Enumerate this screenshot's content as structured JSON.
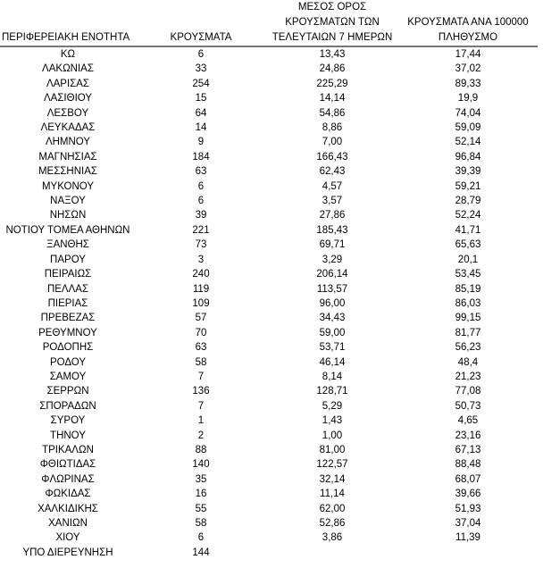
{
  "headers": {
    "region": "ΠΕΡΙΦΕΡΕΙΑΚΗ ΕΝΟΤΗΤΑ",
    "cases": "ΚΡΟΥΣΜΑΤΑ",
    "avg7_line1": "ΜΕΣΟΣ ΟΡΟΣ",
    "avg7_line2": "ΚΡΟΥΣΜΑΤΩΝ ΤΩΝ",
    "avg7_line3": "ΤΕΛΕΥΤΑΙΩΝ 7 ΗΜΕΡΩΝ",
    "per100k_line1": "ΚΡΟΥΣΜΑΤΑ ΑΝΑ 100000",
    "per100k_line2": "ΠΛΗΘΥΣΜΟ"
  },
  "rows": [
    [
      "ΚΩ",
      "6",
      "13,43",
      "17,44"
    ],
    [
      "ΛΑΚΩΝΙΑΣ",
      "33",
      "24,86",
      "37,02"
    ],
    [
      "ΛΑΡΙΣΑΣ",
      "254",
      "225,29",
      "89,33"
    ],
    [
      "ΛΑΣΙΘΙΟΥ",
      "15",
      "14,14",
      "19,9"
    ],
    [
      "ΛΕΣΒΟΥ",
      "64",
      "54,86",
      "74,04"
    ],
    [
      "ΛΕΥΚΑΔΑΣ",
      "14",
      "8,86",
      "59,09"
    ],
    [
      "ΛΗΜΝΟΥ",
      "9",
      "7,00",
      "52,14"
    ],
    [
      "ΜΑΓΝΗΣΙΑΣ",
      "184",
      "166,43",
      "96,84"
    ],
    [
      "ΜΕΣΣΗΝΙΑΣ",
      "63",
      "62,43",
      "39,39"
    ],
    [
      "ΜΥΚΟΝΟΥ",
      "6",
      "4,57",
      "59,21"
    ],
    [
      "ΝΑΞΟΥ",
      "6",
      "3,57",
      "28,79"
    ],
    [
      "ΝΗΣΩΝ",
      "39",
      "27,86",
      "52,24"
    ],
    [
      "ΝΟΤΙΟΥ ΤΟΜΕΑ ΑΘΗΝΩΝ",
      "221",
      "185,43",
      "41,71"
    ],
    [
      "ΞΑΝΘΗΣ",
      "73",
      "69,71",
      "65,63"
    ],
    [
      "ΠΑΡΟΥ",
      "3",
      "3,29",
      "20,1"
    ],
    [
      "ΠΕΙΡΑΙΩΣ",
      "240",
      "206,14",
      "53,45"
    ],
    [
      "ΠΕΛΛΑΣ",
      "119",
      "113,57",
      "85,19"
    ],
    [
      "ΠΙΕΡΙΑΣ",
      "109",
      "96,00",
      "86,03"
    ],
    [
      "ΠΡΕΒΕΖΑΣ",
      "57",
      "34,43",
      "99,15"
    ],
    [
      "ΡΕΘΥΜΝΟΥ",
      "70",
      "59,00",
      "81,77"
    ],
    [
      "ΡΟΔΟΠΗΣ",
      "63",
      "53,71",
      "56,23"
    ],
    [
      "ΡΟΔΟΥ",
      "58",
      "46,14",
      "48,4"
    ],
    [
      "ΣΑΜΟΥ",
      "7",
      "8,14",
      "21,23"
    ],
    [
      "ΣΕΡΡΩΝ",
      "136",
      "128,71",
      "77,08"
    ],
    [
      "ΣΠΟΡΑΔΩΝ",
      "7",
      "5,29",
      "50,73"
    ],
    [
      "ΣΥΡΟΥ",
      "1",
      "1,43",
      "4,65"
    ],
    [
      "ΤΗΝΟΥ",
      "2",
      "1,00",
      "23,16"
    ],
    [
      "ΤΡΙΚΑΛΩΝ",
      "88",
      "81,00",
      "67,13"
    ],
    [
      "ΦΘΙΩΤΙΔΑΣ",
      "140",
      "122,57",
      "88,48"
    ],
    [
      "ΦΛΩΡΙΝΑΣ",
      "35",
      "32,14",
      "68,07"
    ],
    [
      "ΦΩΚΙΔΑΣ",
      "16",
      "11,14",
      "39,66"
    ],
    [
      "ΧΑΛΚΙΔΙΚΗΣ",
      "55",
      "62,00",
      "51,93"
    ],
    [
      "ΧΑΝΙΩΝ",
      "58",
      "52,86",
      "37,04"
    ],
    [
      "ΧΙΟΥ",
      "6",
      "3,86",
      "11,39"
    ],
    [
      "ΥΠΟ ΔΙΕΡΕΥΝΗΣΗ",
      "144",
      "",
      ""
    ]
  ]
}
